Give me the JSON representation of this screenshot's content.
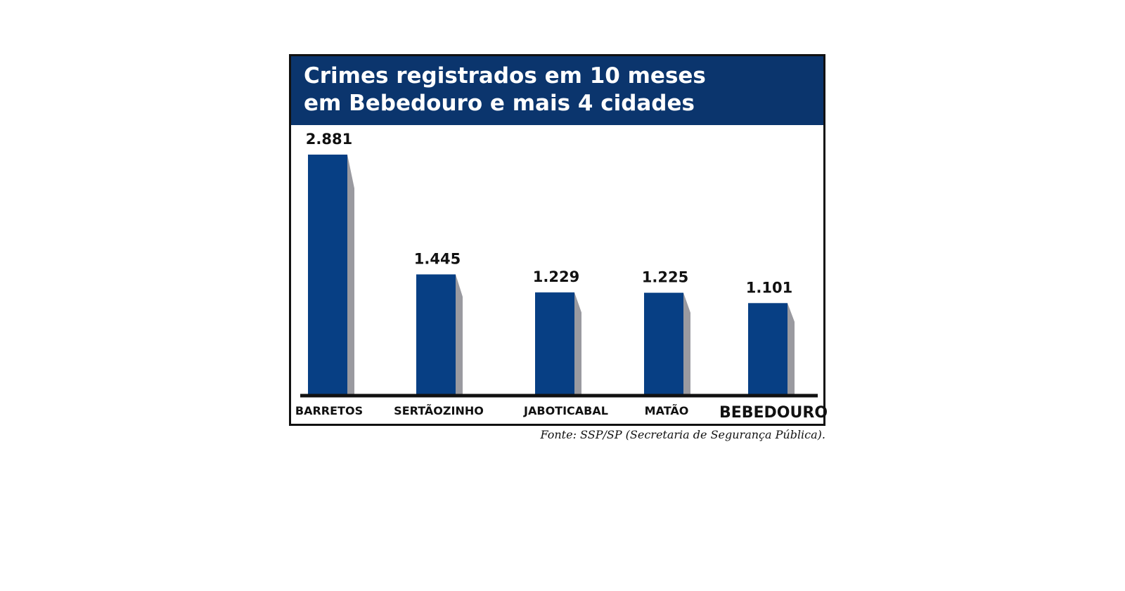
{
  "chart_data": {
    "type": "bar",
    "title_lines": [
      "Crimes registrados em 10 meses",
      "em Bebedouro e mais 4 cidades"
    ],
    "categories": [
      "BARRETOS",
      "SERTÃOZINHO",
      "JABOTICABAL",
      "MATÃO",
      "BEBEDOURO"
    ],
    "values": [
      2881,
      1445,
      1229,
      1225,
      1101
    ],
    "value_labels": [
      "2.881",
      "1.445",
      "1.229",
      "1.225",
      "1.101"
    ],
    "ylim": [
      0,
      2881
    ],
    "grid": false,
    "legend": "none",
    "highlighted_category": "BEBEDOURO",
    "source": "Fonte: SSP/SP (Secretaria de Segurança Pública).",
    "colors": {
      "bar": "#073f84",
      "bar_shadow": "#9a9aa0",
      "title_band": "#0b356d",
      "title_text": "#ffffff",
      "frame": "#111111",
      "axis": "#111111",
      "text": "#111111"
    }
  }
}
